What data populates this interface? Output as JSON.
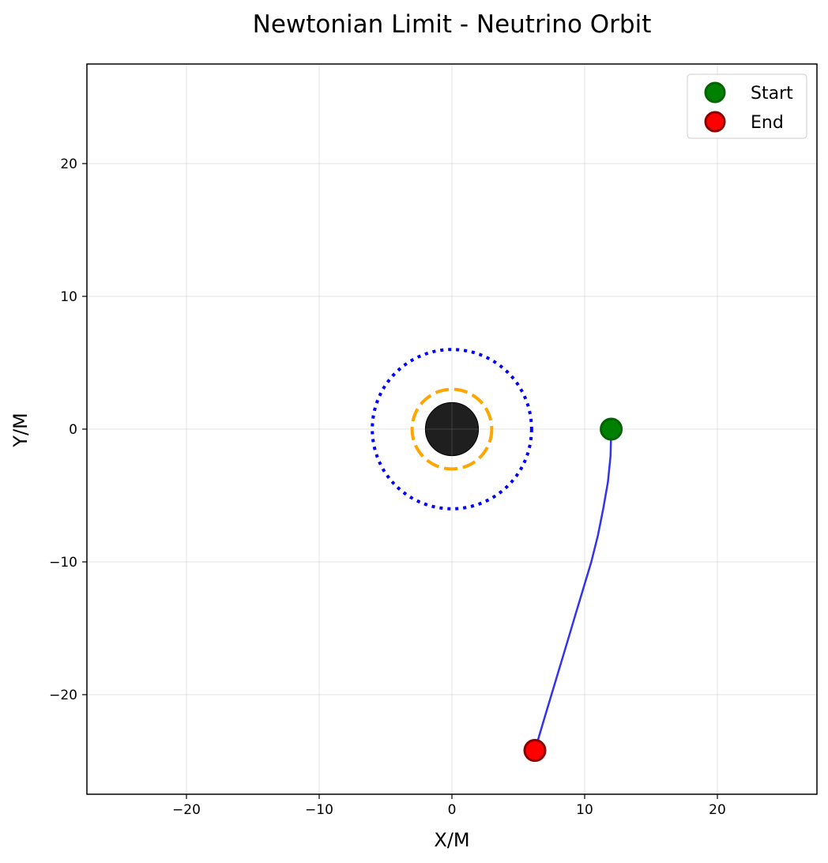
{
  "chart_data": {
    "type": "line",
    "title": "Newtonian Limit - Neutrino Orbit",
    "xlabel": "X/M",
    "ylabel": "Y/M",
    "xlim": [
      -27.5,
      27.5
    ],
    "ylim": [
      -27.5,
      27.5
    ],
    "xticks": [
      -20,
      -10,
      0,
      10,
      20
    ],
    "yticks": [
      -20,
      -10,
      0,
      10,
      20
    ],
    "grid": true,
    "legend_position": "top-right",
    "black_hole": {
      "center": [
        0,
        0
      ],
      "radius": 2,
      "color": "#000000"
    },
    "dashed_circle": {
      "radius": 3,
      "color": "#ffa500"
    },
    "dotted_circle": {
      "radius": 6,
      "color": "#0000ff"
    },
    "trajectory": {
      "color": "#3333ee",
      "x": [
        12.0,
        11.95,
        11.75,
        11.4,
        11.0,
        10.5,
        9.9,
        9.3,
        8.7,
        8.1,
        7.5,
        6.9,
        6.25
      ],
      "y": [
        0.0,
        -2.0,
        -4.0,
        -6.0,
        -8.0,
        -10.0,
        -12.0,
        -14.0,
        -16.0,
        -18.0,
        -20.0,
        -22.0,
        -24.2
      ]
    },
    "markers": [
      {
        "name": "Start",
        "x": 12.0,
        "y": 0.0,
        "fill": "#008000",
        "edge": "#006400"
      },
      {
        "name": "End",
        "x": 6.25,
        "y": -24.2,
        "fill": "#ff0000",
        "edge": "#8b0000"
      }
    ]
  }
}
